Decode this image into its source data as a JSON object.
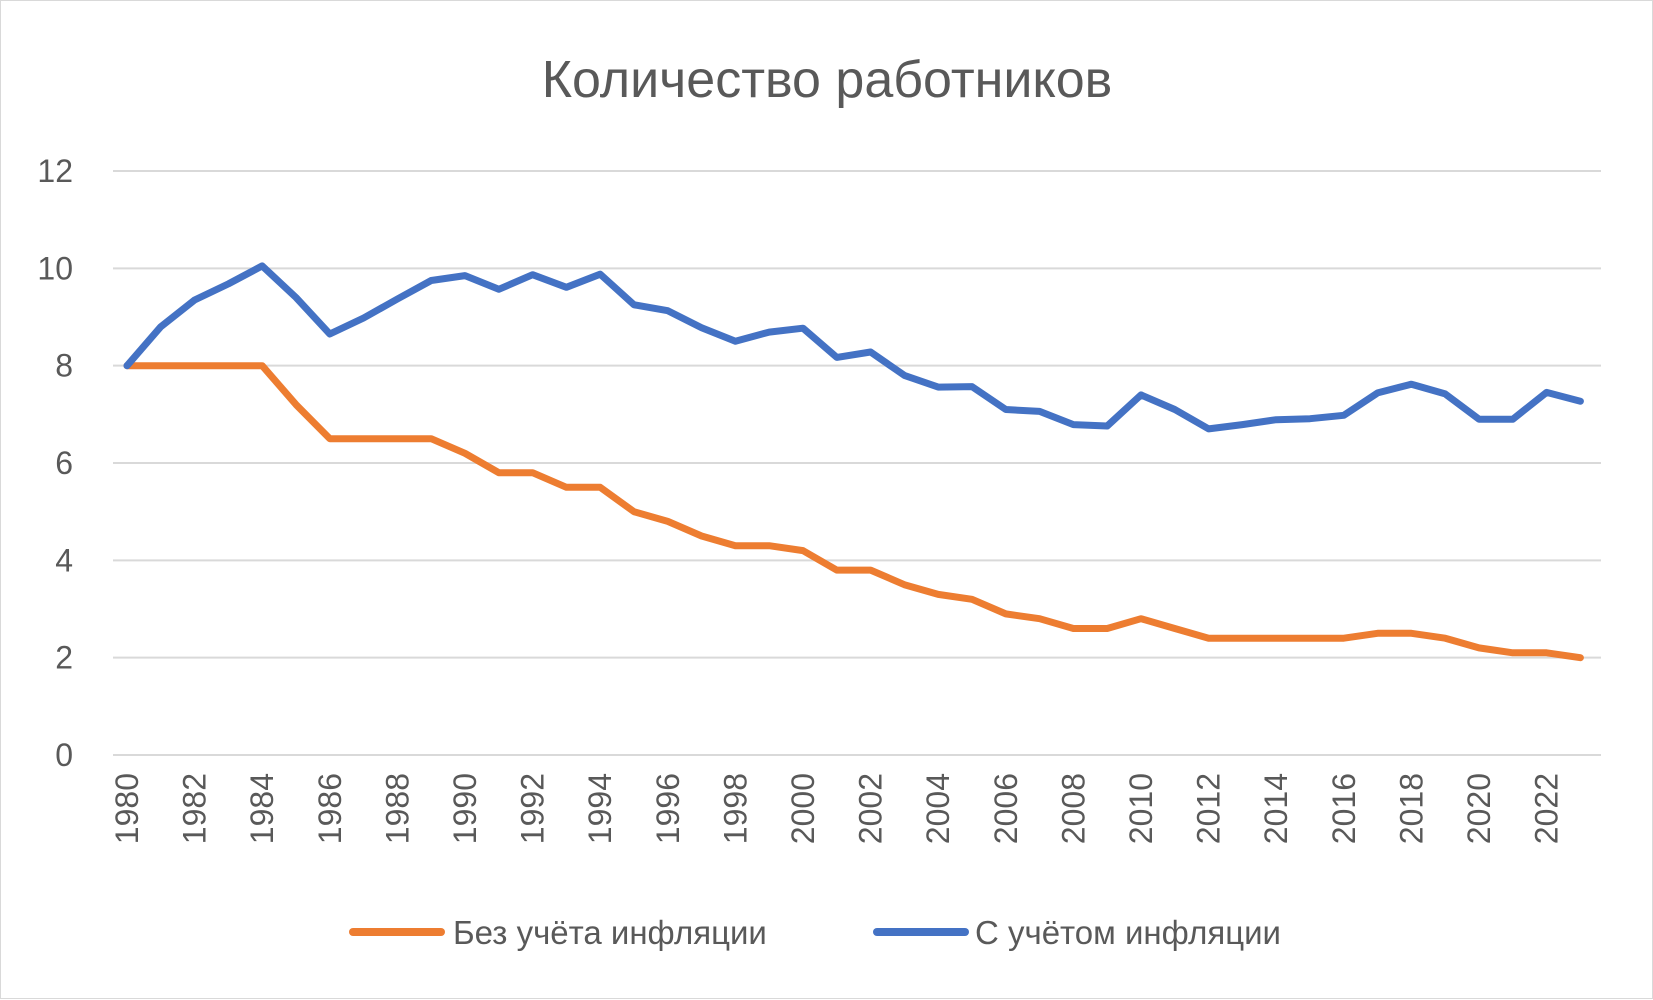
{
  "chart_data": {
    "type": "line",
    "title": "Количество работников",
    "xlabel": "",
    "ylabel": "",
    "ylim": [
      0,
      12
    ],
    "y_ticks": [
      "0",
      "2",
      "4",
      "6",
      "8",
      "10",
      "12"
    ],
    "x_tick_labels": [
      "1980",
      "1982",
      "1984",
      "1986",
      "1988",
      "1990",
      "1992",
      "1994",
      "1996",
      "1998",
      "2000",
      "2002",
      "2004",
      "2006",
      "2008",
      "2010",
      "2012",
      "2014",
      "2016",
      "2018",
      "2020",
      "2022"
    ],
    "grid": true,
    "legend_position": "bottom",
    "x": [
      1980,
      1981,
      1982,
      1983,
      1984,
      1985,
      1986,
      1987,
      1988,
      1989,
      1990,
      1991,
      1992,
      1993,
      1994,
      1995,
      1996,
      1997,
      1998,
      1999,
      2000,
      2001,
      2002,
      2003,
      2004,
      2005,
      2006,
      2007,
      2008,
      2009,
      2010,
      2011,
      2012,
      2013,
      2014,
      2015,
      2016,
      2017,
      2018,
      2019,
      2020,
      2021,
      2022,
      2023
    ],
    "series": [
      {
        "name": "Без учёта инфляции",
        "color": "#ed7d31",
        "values": [
          8,
          8,
          8,
          8,
          8,
          7.2,
          6.5,
          6.5,
          6.5,
          6.5,
          6.2,
          5.8,
          5.8,
          5.5,
          5.5,
          5.0,
          4.8,
          4.5,
          4.3,
          4.3,
          4.2,
          3.8,
          3.8,
          3.5,
          3.3,
          3.2,
          2.9,
          2.8,
          2.6,
          2.6,
          2.8,
          2.6,
          2.4,
          2.4,
          2.4,
          2.4,
          2.4,
          2.5,
          2.5,
          2.4,
          2.2,
          2.1,
          2.1,
          2.0
        ]
      },
      {
        "name": "С учётом инфляции",
        "color": "#4472c4",
        "values": [
          8.0,
          8.8,
          9.35,
          9.68,
          10.05,
          9.4,
          8.65,
          8.98,
          9.37,
          9.75,
          9.85,
          9.57,
          9.87,
          9.61,
          9.88,
          9.25,
          9.13,
          8.78,
          8.5,
          8.69,
          8.77,
          8.17,
          8.28,
          7.8,
          7.56,
          7.57,
          7.1,
          7.06,
          6.79,
          6.76,
          7.4,
          7.1,
          6.7,
          6.79,
          6.89,
          6.91,
          6.98,
          7.44,
          7.62,
          7.42,
          6.9,
          6.9,
          7.45,
          7.27
        ]
      }
    ]
  }
}
